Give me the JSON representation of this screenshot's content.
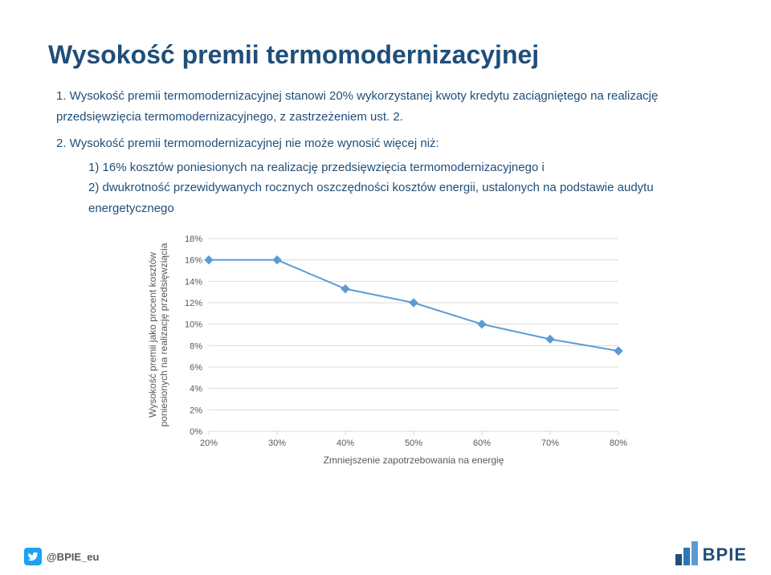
{
  "title": "Wysokość premii termomodernizacyjnej",
  "list1": "1. Wysokość premii termomodernizacyjnej stanowi 20% wykorzystanej kwoty kredytu zaciągniętego na realizację przedsięwzięcia termomodernizacyjnego, z zastrzeżeniem ust. 2.",
  "list2": "2. Wysokość premii termomodernizacyjnej nie może wynosić więcej niż:",
  "sub1": "1)   16% kosztów poniesionych na realizację przedsięwzięcia termomodernizacyjnego i",
  "sub2": "2)   dwukrotność przewidywanych rocznych oszczędności kosztów energii, ustalonych na podstawie audytu energetycznego",
  "handle": "@BPIE_eu",
  "logo_text": "BPIE",
  "chart": {
    "type": "line",
    "x_values": [
      20,
      30,
      40,
      50,
      60,
      70,
      80
    ],
    "y_values": [
      16.0,
      16.0,
      13.3,
      12.0,
      10.0,
      8.6,
      7.5
    ],
    "x_ticks": [
      "20%",
      "30%",
      "40%",
      "50%",
      "60%",
      "70%",
      "80%"
    ],
    "y_ticks": [
      "0%",
      "2%",
      "4%",
      "6%",
      "8%",
      "10%",
      "12%",
      "14%",
      "16%",
      "18%"
    ],
    "y_min": 0,
    "y_max": 18,
    "y_step": 2,
    "x_min": 20,
    "x_max": 80,
    "line_color": "#5b9bd5",
    "marker_color": "#5b9bd5",
    "marker_size": 5,
    "line_width": 2,
    "grid_color": "#d9d9d9",
    "tick_color": "#d9d9d9",
    "text_color": "#595959",
    "background": "#ffffff",
    "x_label": "Zmniejszenie zapotrzebowania na energię",
    "y_label": "Wysokość premii jako procent kosztów poniesionych na realizację przedsięwziącia",
    "label_fontsize": 12,
    "tick_fontsize": 11
  },
  "logo_colors": [
    "#1f4e79",
    "#2e75b6",
    "#5b9bd5"
  ],
  "logo_heights": [
    14,
    22,
    30
  ]
}
